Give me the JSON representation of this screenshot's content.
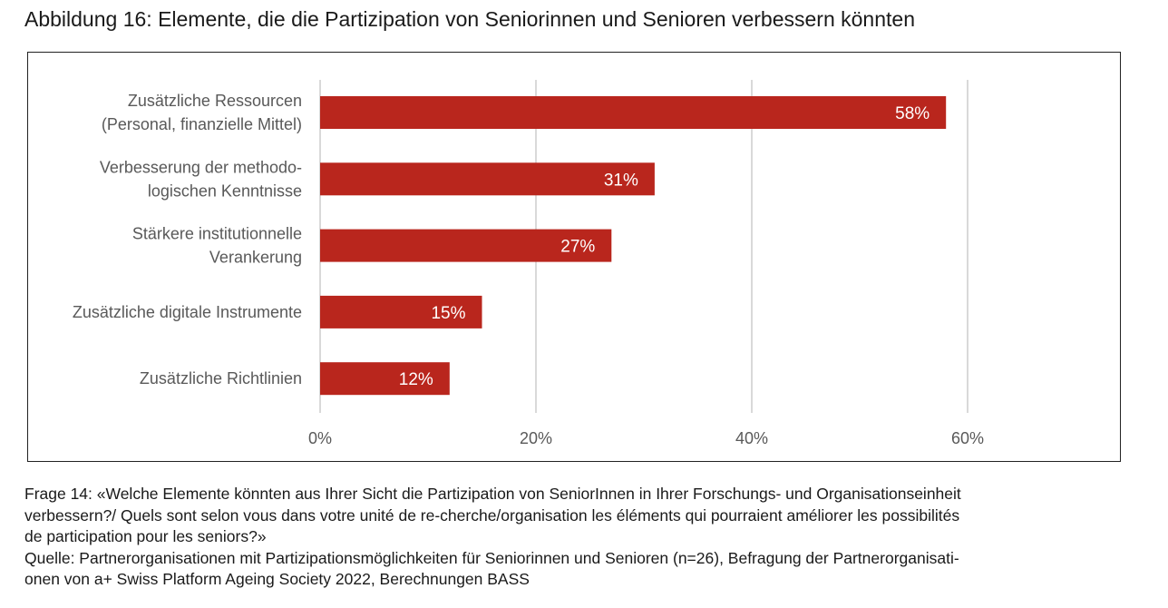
{
  "title": "Abbildung 16: Elemente, die die Partizipation von Seniorinnen und Senioren verbessern könnten",
  "chart_data": {
    "type": "bar",
    "orientation": "horizontal",
    "categories": [
      [
        "Zusätzliche Ressourcen",
        "(Personal, finanzielle Mittel)"
      ],
      [
        "Verbesserung der methodo-",
        "logischen Kenntnisse"
      ],
      [
        "Stärkere institutionnelle",
        "Verankerung"
      ],
      [
        "Zusätzliche digitale Instrumente"
      ],
      [
        "Zusätzliche Richtlinien"
      ]
    ],
    "values": [
      58,
      31,
      27,
      15,
      12
    ],
    "data_labels": [
      "58%",
      "31%",
      "27%",
      "15%",
      "12%"
    ],
    "xlim": [
      0,
      70
    ],
    "xticks": [
      0,
      20,
      40,
      60
    ],
    "xtick_labels": [
      "0%",
      "20%",
      "40%",
      "60%"
    ],
    "grid": "vertical",
    "bar_color": "#b9261d",
    "label_color": "#ffffff",
    "axis_text_color": "#595959"
  },
  "notes": {
    "question_lines": [
      "Frage 14: «Welche Elemente könnten aus Ihrer Sicht die Partizipation von SeniorInnen in Ihrer Forschungs- und Organisationseinheit",
      "verbessern?/ Quels sont selon vous dans votre unité de re-cherche/organisation les éléments qui pourraient améliorer les possibilités",
      "de participation pour les seniors?»"
    ],
    "source_lines": [
      "Quelle: Partnerorganisationen mit Partizipationsmöglichkeiten für Seniorinnen und Senioren (n=26), Befragung der Partnerorganisati-",
      "onen von a+ Swiss Platform Ageing Society 2022, Berechnungen BASS"
    ]
  }
}
